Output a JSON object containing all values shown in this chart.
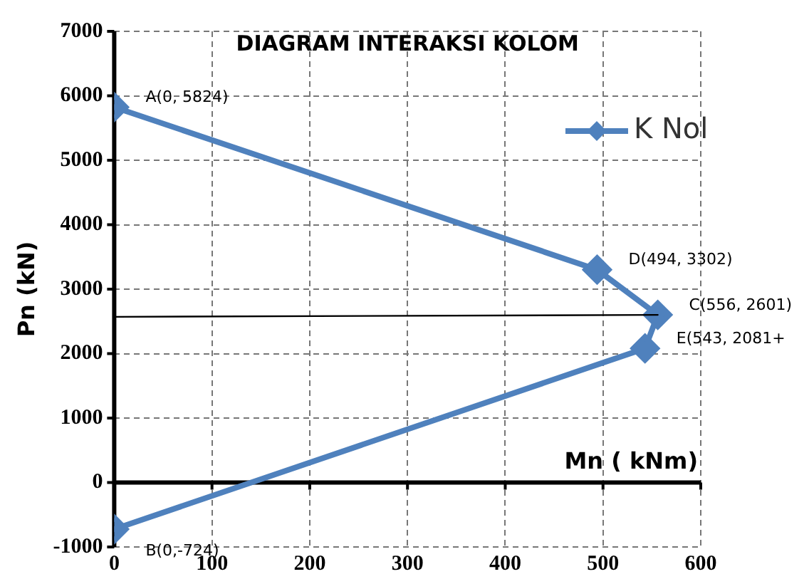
{
  "chart_data": {
    "type": "line",
    "title": "DIAGRAM INTERAKSI KOLOM",
    "xlabel": "Mn ( kNm)",
    "ylabel": "Pn (kN)",
    "xlim": [
      0,
      600
    ],
    "xticks": [
      0,
      100,
      200,
      300,
      400,
      500,
      600
    ],
    "ylim": [
      -1000,
      7000
    ],
    "yticks": [
      -1000,
      0,
      1000,
      2000,
      3000,
      4000,
      5000,
      6000,
      7000
    ],
    "grid": true,
    "legend": "right",
    "marker": "diamond",
    "line_style": "solid",
    "series": [
      {
        "name": "K Nol",
        "color": "#4f81bd",
        "x": [
          0,
          494,
          556,
          543,
          0
        ],
        "values": [
          5824,
          3302,
          2601,
          2081,
          -724
        ]
      },
      {
        "color": "#000000",
        "marker": "none",
        "x": [
          0,
          556
        ],
        "values": [
          2570,
          2601
        ]
      }
    ],
    "annotations": [
      {
        "text": "A(0, 5824)",
        "x": 0,
        "y": 5824
      },
      {
        "text": "D(494, 3302)",
        "x": 494,
        "y": 3302
      },
      {
        "text": "C(556, 2601)",
        "x": 556,
        "y": 2601
      },
      {
        "text": "E(543, 2081+",
        "x": 543,
        "y": 2081
      },
      {
        "text": "B(0,-724)",
        "x": 0,
        "y": -724
      }
    ]
  }
}
